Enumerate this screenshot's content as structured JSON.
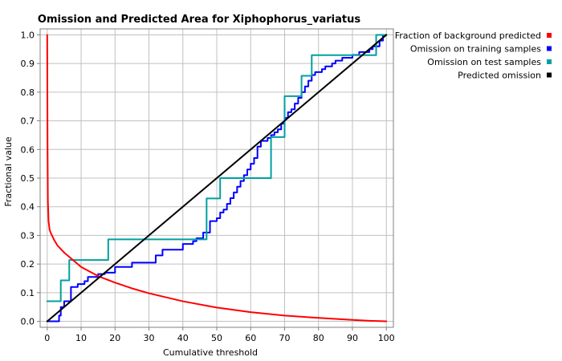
{
  "chart_data": {
    "type": "line",
    "title": "Omission and Predicted Area for Xiphophorus_variatus",
    "xlabel": "Cumulative threshold",
    "ylabel": "Fractional value",
    "xlim": [
      0,
      100
    ],
    "ylim": [
      0,
      1.0
    ],
    "x_ticks": [
      0,
      10,
      20,
      30,
      40,
      50,
      60,
      70,
      80,
      90,
      100
    ],
    "y_ticks": [
      0.0,
      0.1,
      0.2,
      0.3,
      0.4,
      0.5,
      0.6,
      0.7,
      0.8,
      0.9,
      1.0
    ],
    "x_tick_labels": [
      "0",
      "10",
      "20",
      "30",
      "40",
      "50",
      "60",
      "70",
      "80",
      "90",
      "100"
    ],
    "y_tick_labels": [
      "0.0",
      "0.1",
      "0.2",
      "0.3",
      "0.4",
      "0.5",
      "0.6",
      "0.7",
      "0.8",
      "0.9",
      "1.0"
    ],
    "grid": true,
    "legend_position": "top-right outside",
    "series": [
      {
        "name": "Fraction of background predicted",
        "color": "#ff0000",
        "style": "line",
        "x": [
          0,
          0.1,
          0.2,
          0.4,
          0.7,
          1,
          2,
          3,
          5,
          7,
          10,
          15,
          20,
          25,
          30,
          40,
          50,
          60,
          70,
          80,
          90,
          95,
          100
        ],
        "y": [
          1.0,
          0.6,
          0.42,
          0.35,
          0.32,
          0.31,
          0.285,
          0.265,
          0.24,
          0.22,
          0.19,
          0.158,
          0.135,
          0.115,
          0.098,
          0.07,
          0.048,
          0.032,
          0.02,
          0.012,
          0.005,
          0.002,
          0.0
        ]
      },
      {
        "name": "Omission on training samples",
        "color": "#0000ff",
        "style": "step",
        "x": [
          0,
          3.5,
          3.5,
          4,
          4,
          5,
          5,
          7,
          7,
          9,
          9,
          11,
          11,
          12,
          12,
          15,
          15,
          17,
          17,
          20,
          20,
          25,
          25,
          32,
          32,
          34,
          34,
          40,
          40,
          43,
          43,
          44,
          44,
          46,
          46,
          48,
          48,
          50,
          50,
          51,
          51,
          52,
          52,
          53,
          53,
          54,
          54,
          55,
          55,
          56,
          56,
          57,
          57,
          58,
          58,
          59,
          59,
          60,
          60,
          61,
          61,
          62,
          62,
          63,
          63,
          65,
          65,
          66,
          66,
          67,
          67,
          68,
          68,
          69,
          69,
          70,
          70,
          71,
          71,
          72,
          72,
          73,
          73,
          74,
          74,
          75,
          75,
          76,
          76,
          77,
          77,
          78,
          78,
          79,
          79,
          81,
          81,
          82,
          82,
          84,
          84,
          85,
          85,
          87,
          87,
          90,
          90,
          92,
          92,
          95,
          95,
          96,
          96,
          98,
          98,
          99,
          99,
          100
        ],
        "y": [
          0,
          0,
          0.02,
          0.02,
          0.05,
          0.05,
          0.07,
          0.07,
          0.12,
          0.12,
          0.13,
          0.13,
          0.14,
          0.14,
          0.155,
          0.155,
          0.165,
          0.165,
          0.17,
          0.17,
          0.19,
          0.19,
          0.205,
          0.205,
          0.23,
          0.23,
          0.25,
          0.25,
          0.27,
          0.27,
          0.28,
          0.28,
          0.29,
          0.29,
          0.31,
          0.31,
          0.35,
          0.35,
          0.36,
          0.36,
          0.38,
          0.38,
          0.39,
          0.39,
          0.41,
          0.41,
          0.43,
          0.43,
          0.45,
          0.45,
          0.47,
          0.47,
          0.49,
          0.49,
          0.51,
          0.51,
          0.53,
          0.53,
          0.55,
          0.55,
          0.57,
          0.57,
          0.61,
          0.61,
          0.63,
          0.63,
          0.64,
          0.64,
          0.65,
          0.65,
          0.66,
          0.66,
          0.67,
          0.67,
          0.69,
          0.69,
          0.71,
          0.71,
          0.73,
          0.73,
          0.74,
          0.74,
          0.76,
          0.76,
          0.78,
          0.78,
          0.8,
          0.8,
          0.82,
          0.82,
          0.84,
          0.84,
          0.86,
          0.86,
          0.87,
          0.87,
          0.88,
          0.88,
          0.89,
          0.89,
          0.9,
          0.9,
          0.91,
          0.91,
          0.92,
          0.92,
          0.93,
          0.93,
          0.94,
          0.94,
          0.95,
          0.95,
          0.96,
          0.96,
          0.98,
          0.98,
          1.0,
          1.0
        ]
      },
      {
        "name": "Omission on test samples",
        "color": "#00a0a0",
        "style": "step",
        "x": [
          0,
          4,
          4,
          6.5,
          6.5,
          18,
          18,
          47,
          47,
          51,
          51,
          58,
          58,
          66,
          66,
          70,
          70,
          72,
          72,
          75,
          75,
          78,
          78,
          97,
          97,
          100
        ],
        "y": [
          0.07,
          0.07,
          0.143,
          0.143,
          0.214,
          0.214,
          0.286,
          0.286,
          0.429,
          0.429,
          0.5,
          0.5,
          0.5,
          0.5,
          0.643,
          0.643,
          0.786,
          0.786,
          0.786,
          0.786,
          0.857,
          0.857,
          0.929,
          0.929,
          1.0,
          1.0
        ]
      },
      {
        "name": "Predicted omission",
        "color": "#000000",
        "style": "line",
        "x": [
          0,
          100
        ],
        "y": [
          0,
          1.0
        ]
      }
    ]
  }
}
